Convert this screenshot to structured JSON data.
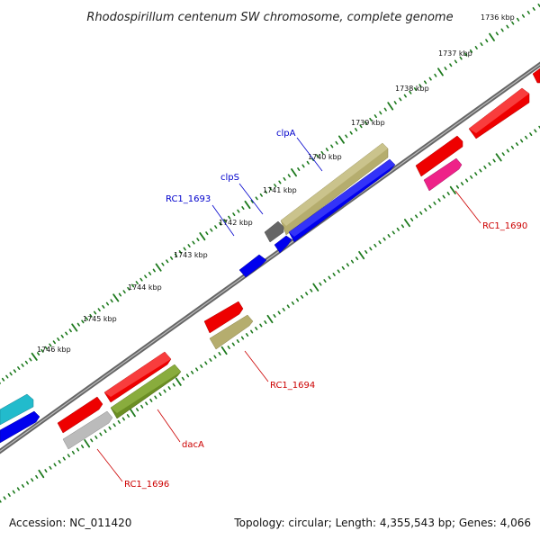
{
  "header": {
    "title": "Rhodospirillum centenum SW chromosome, complete genome"
  },
  "footer": {
    "accession": "Accession: NC_011420",
    "summary": "Topology: circular; Length: 4,355,543 bp; Genes: 4,066"
  },
  "scale": {
    "ticks": [
      "1736 kbp",
      "1737 kbp",
      "1738 kbp",
      "1739 kbp",
      "1740 kbp",
      "1741 kbp",
      "1742 kbp",
      "1743 kbp",
      "1744 kbp",
      "1745 kbp",
      "1746 kbp"
    ]
  },
  "genes": {
    "labels": [
      {
        "name": "clpA",
        "color": "#0000cc"
      },
      {
        "name": "clpS",
        "color": "#0000cc"
      },
      {
        "name": "RC1_1693",
        "color": "#0000cc"
      },
      {
        "name": "RC1_1690",
        "color": "#cc0000"
      },
      {
        "name": "RC1_1694",
        "color": "#cc0000"
      },
      {
        "name": "dacA",
        "color": "#cc0000"
      },
      {
        "name": "RC1_1696",
        "color": "#cc0000"
      }
    ]
  },
  "colors": {
    "backbone": "#777777",
    "ticks": "#1e7a1e",
    "forward_link": "#0000cc",
    "reverse_link": "#cc0000",
    "red_feature": "#ee0000",
    "blue_feature": "#0000ee",
    "khaki_feature": "#b5ad6e",
    "olive_feature": "#6b8e23",
    "gray_feature": "#bbbbbb",
    "dark_gray_feature": "#666666",
    "pink_feature": "#ee2288",
    "cyan_feature": "#22bbcc"
  }
}
